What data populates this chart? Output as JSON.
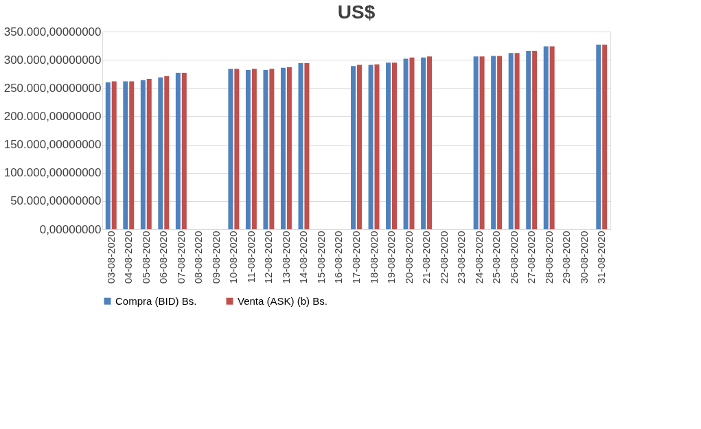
{
  "chart_data": {
    "type": "bar",
    "title": "US$",
    "categories": [
      "03-08-2020",
      "04-08-2020",
      "05-08-2020",
      "06-08-2020",
      "07-08-2020",
      "08-08-2020",
      "09-08-2020",
      "10-08-2020",
      "11-08-2020",
      "12-08-2020",
      "13-08-2020",
      "14-08-2020",
      "15-08-2020",
      "16-08-2020",
      "17-08-2020",
      "18-08-2020",
      "19-08-2020",
      "20-08-2020",
      "21-08-2020",
      "22-08-2020",
      "23-08-2020",
      "24-08-2020",
      "25-08-2020",
      "26-08-2020",
      "27-08-2020",
      "28-08-2020",
      "29-08-2020",
      "30-08-2020",
      "31-08-2020"
    ],
    "series": [
      {
        "name": "Compra (BID) Bs.",
        "color": "#4f81bd",
        "values": [
          260000,
          262000,
          264000,
          269000,
          277000,
          null,
          null,
          284000,
          282000,
          282000,
          286000,
          294000,
          null,
          null,
          289000,
          291000,
          295000,
          302000,
          304000,
          null,
          null,
          306000,
          307000,
          312000,
          316000,
          324000,
          null,
          null,
          327000
        ]
      },
      {
        "name": "Venta (ASK) (b) Bs.",
        "color": "#c0504d",
        "values": [
          262000,
          262000,
          266000,
          271000,
          277000,
          null,
          null,
          284000,
          284000,
          284000,
          287000,
          294000,
          null,
          null,
          291000,
          292000,
          295000,
          304000,
          306000,
          null,
          null,
          306000,
          307000,
          312000,
          316000,
          324000,
          null,
          null,
          327000
        ]
      }
    ],
    "ylim": [
      0,
      350000
    ],
    "yticks": [
      {
        "value": 0,
        "label": "0,00000000"
      },
      {
        "value": 50000,
        "label": "50.000,00000000"
      },
      {
        "value": 100000,
        "label": "100.000,00000000"
      },
      {
        "value": 150000,
        "label": "150.000,00000000"
      },
      {
        "value": 200000,
        "label": "200.000,00000000"
      },
      {
        "value": 250000,
        "label": "250.000,00000000"
      },
      {
        "value": 300000,
        "label": "300.000,00000000"
      },
      {
        "value": 350000,
        "label": "350.000,00000000"
      }
    ],
    "grid": "y",
    "legend": "bottom"
  }
}
